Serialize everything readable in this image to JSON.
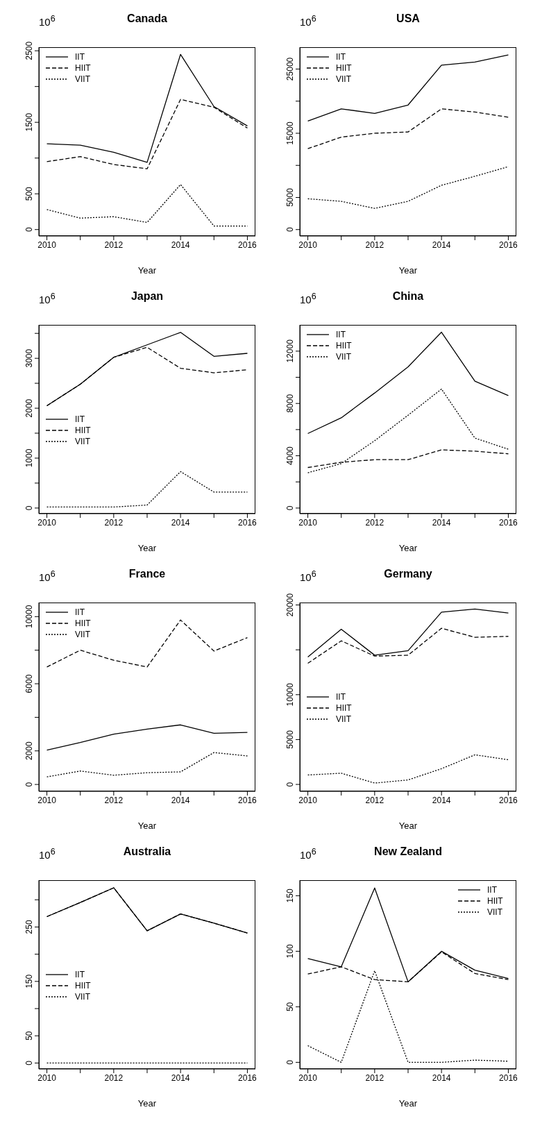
{
  "chart_data": [
    {
      "type": "line",
      "title": "Canada",
      "xlabel": "Year",
      "annotations": [
        "10$^{6}$"
      ],
      "x": [
        2010,
        2011,
        2012,
        2013,
        2014,
        2015,
        2016
      ],
      "xlim": [
        2009.76,
        2016.24
      ],
      "xticks": [
        2010,
        {
          "value": 2011,
          "label": null
        },
        2012,
        {
          "value": 2013,
          "label": null
        },
        2014,
        {
          "value": 2015,
          "label": null
        },
        2016
      ],
      "ylim": [
        -90,
        2550
      ],
      "yticks": [
        0,
        500,
        {
          "value": 1000,
          "label": null
        },
        1500,
        {
          "value": 2000,
          "label": null
        },
        2500
      ],
      "legend": "top left",
      "marker": "none",
      "series": [
        {
          "name": "IIT",
          "color": "#000000",
          "line_style": "solid",
          "values": [
            1200,
            1180,
            1080,
            940,
            2450,
            1720,
            1450
          ]
        },
        {
          "name": "HIIT",
          "color": "#000000",
          "line_style": "dashed",
          "values": [
            950,
            1020,
            910,
            850,
            1820,
            1710,
            1420
          ]
        },
        {
          "name": "VIIT",
          "color": "#000000",
          "line_style": "dotted",
          "values": [
            280,
            160,
            180,
            100,
            630,
            50,
            50
          ]
        }
      ]
    },
    {
      "type": "line",
      "title": "USA",
      "xlabel": "Year",
      "annotations": [
        "10$^{6}$"
      ],
      "x": [
        2010,
        2011,
        2012,
        2013,
        2014,
        2015,
        2016
      ],
      "xlim": [
        2009.76,
        2016.24
      ],
      "xticks": [
        2010,
        {
          "value": 2011,
          "label": null
        },
        2012,
        {
          "value": 2013,
          "label": null
        },
        2014,
        {
          "value": 2015,
          "label": null
        },
        2016
      ],
      "ylim": [
        -1000,
        28400
      ],
      "yticks": [
        0,
        5000,
        {
          "value": 10000,
          "label": null
        },
        15000,
        {
          "value": 20000,
          "label": null
        },
        25000
      ],
      "legend": "top left",
      "marker": "none",
      "series": [
        {
          "name": "IIT",
          "color": "#000000",
          "line_style": "solid",
          "values": [
            16900,
            18800,
            18100,
            19400,
            25600,
            26100,
            27200
          ]
        },
        {
          "name": "HIIT",
          "color": "#000000",
          "line_style": "dashed",
          "values": [
            12600,
            14400,
            15000,
            15200,
            18800,
            18300,
            17500
          ]
        },
        {
          "name": "VIIT",
          "color": "#000000",
          "line_style": "dotted",
          "values": [
            4800,
            4400,
            3300,
            4400,
            6900,
            8300,
            9800
          ]
        }
      ]
    },
    {
      "type": "line",
      "title": "Japan",
      "xlabel": "Year",
      "annotations": [
        "10$^{6}$"
      ],
      "x": [
        2010,
        2011,
        2012,
        2013,
        2014,
        2015,
        2016
      ],
      "xlim": [
        2009.76,
        2016.24
      ],
      "xticks": [
        2010,
        {
          "value": 2011,
          "label": null
        },
        2012,
        {
          "value": 2013,
          "label": null
        },
        2014,
        {
          "value": 2015,
          "label": null
        },
        2016
      ],
      "ylim": [
        -113,
        3670
      ],
      "yticks": [
        0,
        {
          "value": 500,
          "label": null
        },
        1000,
        {
          "value": 1500,
          "label": null
        },
        2000,
        {
          "value": 2500,
          "label": null
        },
        3000,
        {
          "value": 3500,
          "label": null
        }
      ],
      "legend": "left",
      "marker": "none",
      "series": [
        {
          "name": "IIT",
          "color": "#000000",
          "line_style": "solid",
          "values": [
            2050,
            2480,
            3020,
            3270,
            3520,
            3040,
            3100
          ]
        },
        {
          "name": "HIIT",
          "color": "#000000",
          "line_style": "dashed",
          "values": [
            2050,
            2480,
            3020,
            3220,
            2800,
            2710,
            2770
          ]
        },
        {
          "name": "VIIT",
          "color": "#000000",
          "line_style": "dotted",
          "values": [
            20,
            20,
            20,
            60,
            730,
            320,
            320
          ]
        }
      ]
    },
    {
      "type": "line",
      "title": "China",
      "xlabel": "Year",
      "annotations": [
        "10$^{6}$"
      ],
      "x": [
        2010,
        2011,
        2012,
        2013,
        2014,
        2015,
        2016
      ],
      "xlim": [
        2009.76,
        2016.24
      ],
      "xticks": [
        2010,
        {
          "value": 2011,
          "label": null
        },
        2012,
        {
          "value": 2013,
          "label": null
        },
        2014,
        {
          "value": 2015,
          "label": null
        },
        2016
      ],
      "ylim": [
        -430,
        14010
      ],
      "yticks": [
        0,
        {
          "value": 2000,
          "label": null
        },
        4000,
        {
          "value": 6000,
          "label": null
        },
        8000,
        {
          "value": 10000,
          "label": null
        },
        12000
      ],
      "legend": "top left",
      "marker": "none",
      "series": [
        {
          "name": "IIT",
          "color": "#000000",
          "line_style": "solid",
          "values": [
            5700,
            6900,
            8800,
            10800,
            13450,
            9700,
            8600
          ]
        },
        {
          "name": "HIIT",
          "color": "#000000",
          "line_style": "dashed",
          "values": [
            3100,
            3500,
            3700,
            3700,
            4450,
            4350,
            4150
          ]
        },
        {
          "name": "VIIT",
          "color": "#000000",
          "line_style": "dotted",
          "values": [
            2700,
            3400,
            5150,
            7100,
            9100,
            5350,
            4500
          ]
        }
      ]
    },
    {
      "type": "line",
      "title": "France",
      "xlabel": "Year",
      "annotations": [
        "10$^{6}$"
      ],
      "x": [
        2010,
        2011,
        2012,
        2013,
        2014,
        2015,
        2016
      ],
      "xlim": [
        2009.76,
        2016.24
      ],
      "xticks": [
        2010,
        {
          "value": 2011,
          "label": null
        },
        2012,
        {
          "value": 2013,
          "label": null
        },
        2014,
        {
          "value": 2015,
          "label": null
        },
        2016
      ],
      "ylim": [
        -410,
        10840
      ],
      "yticks": [
        0,
        2000,
        {
          "value": 4000,
          "label": null
        },
        6000,
        {
          "value": 8000,
          "label": null
        },
        10000
      ],
      "legend": "top left",
      "marker": "none",
      "series": [
        {
          "name": "IIT",
          "color": "#000000",
          "line_style": "solid",
          "values": [
            2050,
            2500,
            3000,
            3300,
            3550,
            3050,
            3100
          ]
        },
        {
          "name": "HIIT",
          "color": "#000000",
          "line_style": "dashed",
          "values": [
            7000,
            8000,
            7400,
            7000,
            9800,
            7950,
            8750
          ]
        },
        {
          "name": "VIIT",
          "color": "#000000",
          "line_style": "dotted",
          "values": [
            450,
            800,
            550,
            700,
            750,
            1900,
            1700
          ]
        }
      ]
    },
    {
      "type": "line",
      "title": "Germany",
      "xlabel": "Year",
      "annotations": [
        "10$^{6}$"
      ],
      "x": [
        2010,
        2011,
        2012,
        2013,
        2014,
        2015,
        2016
      ],
      "xlim": [
        2009.76,
        2016.24
      ],
      "xticks": [
        2010,
        {
          "value": 2011,
          "label": null
        },
        2012,
        {
          "value": 2013,
          "label": null
        },
        2014,
        {
          "value": 2015,
          "label": null
        },
        2016
      ],
      "ylim": [
        -770,
        20270
      ],
      "yticks": [
        0,
        5000,
        10000,
        {
          "value": 15000,
          "label": null
        },
        20000
      ],
      "legend": "left",
      "marker": "none",
      "series": [
        {
          "name": "IIT",
          "color": "#000000",
          "line_style": "solid",
          "values": [
            14200,
            17300,
            14400,
            14900,
            19200,
            19550,
            19100
          ]
        },
        {
          "name": "HIIT",
          "color": "#000000",
          "line_style": "dashed",
          "values": [
            13500,
            16000,
            14300,
            14400,
            17400,
            16400,
            16500
          ]
        },
        {
          "name": "VIIT",
          "color": "#000000",
          "line_style": "dotted",
          "values": [
            1050,
            1250,
            150,
            500,
            1750,
            3300,
            2750
          ]
        }
      ]
    },
    {
      "type": "line",
      "title": "Australia",
      "xlabel": "Year",
      "annotations": [
        "10$^{6}$"
      ],
      "x": [
        2010,
        2011,
        2012,
        2013,
        2014,
        2015,
        2016
      ],
      "xlim": [
        2009.76,
        2016.24
      ],
      "xticks": [
        2010,
        {
          "value": 2011,
          "label": null
        },
        2012,
        {
          "value": 2013,
          "label": null
        },
        2014,
        {
          "value": 2015,
          "label": null
        },
        2016
      ],
      "ylim": [
        -11,
        336
      ],
      "yticks": [
        0,
        50,
        {
          "value": 100,
          "label": null
        },
        150,
        {
          "value": 200,
          "label": null
        },
        250,
        {
          "value": 300,
          "label": null
        }
      ],
      "legend": "left",
      "marker": "none",
      "series": [
        {
          "name": "IIT",
          "color": "#000000",
          "line_style": "solid",
          "values": [
            269,
            295,
            322,
            243,
            274,
            257,
            239
          ]
        },
        {
          "name": "HIIT",
          "color": "#000000",
          "line_style": "dashed",
          "values": [
            269,
            295,
            322,
            243,
            274,
            257,
            239
          ]
        },
        {
          "name": "VIIT",
          "color": "#000000",
          "line_style": "dotted",
          "values": [
            0,
            0,
            0,
            0,
            0,
            0,
            0
          ]
        }
      ]
    },
    {
      "type": "line",
      "title": "New Zealand",
      "xlabel": "Year",
      "annotations": [
        "10$^{6}$"
      ],
      "x": [
        2010,
        2011,
        2012,
        2013,
        2014,
        2015,
        2016
      ],
      "xlim": [
        2009.76,
        2016.24
      ],
      "xticks": [
        2010,
        {
          "value": 2011,
          "label": null
        },
        2012,
        {
          "value": 2013,
          "label": null
        },
        2014,
        {
          "value": 2015,
          "label": null
        },
        2016
      ],
      "ylim": [
        -6,
        164
      ],
      "yticks": [
        0,
        50,
        100,
        150
      ],
      "legend": "top right",
      "marker": "none",
      "series": [
        {
          "name": "IIT",
          "color": "#000000",
          "line_style": "solid",
          "values": [
            93.5,
            86,
            157,
            72.5,
            100,
            83,
            75.5
          ]
        },
        {
          "name": "HIIT",
          "color": "#000000",
          "line_style": "dashed",
          "values": [
            79.5,
            86,
            74.5,
            72.5,
            99.5,
            80,
            74.5
          ]
        },
        {
          "name": "VIIT",
          "color": "#000000",
          "line_style": "dotted",
          "values": [
            15,
            0,
            82.5,
            0,
            0,
            2,
            1
          ]
        }
      ]
    }
  ]
}
